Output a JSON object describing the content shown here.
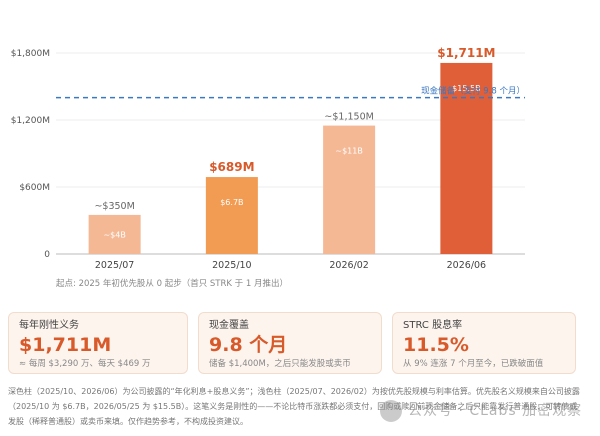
{
  "chart_data": {
    "type": "bar",
    "categories": [
      "2025/07",
      "2025/10",
      "2026/02",
      "2026/06"
    ],
    "values": [
      350,
      689,
      1150,
      1711
    ],
    "value_labels": [
      "~$350M",
      "$689M",
      "~$1,150M",
      "$1,711M"
    ],
    "inner_labels": [
      "~$4B",
      "$6.7B",
      "~$11B",
      "$15.5B"
    ],
    "bar_colors": [
      "#f4b895",
      "#f29b53",
      "#f4b895",
      "#e05e38"
    ],
    "bold_labels": [
      false,
      true,
      false,
      true
    ],
    "ylim": [
      0,
      1900
    ],
    "yticks": [
      0,
      600,
      1200,
      1800
    ],
    "ytick_labels": [
      "0",
      "$600M",
      "$1,200M",
      "$1,800M"
    ],
    "reference_line": {
      "value": 1400,
      "label": "现金储备（支付 9.8 个月）",
      "color": "#3a78c2"
    },
    "xnote": "起点: 2025 年初优先股从 0 起步（首只 STRK 于 1 月推出）",
    "grid": true
  },
  "cards": [
    {
      "title": "每年刚性义务",
      "value": "$1,711M",
      "sub": "≈ 每周 $3,290 万、每天 $469 万"
    },
    {
      "title": "现金覆盖",
      "value": "9.8 个月",
      "sub": "储备 $1,400M，之后只能发股或卖币"
    },
    {
      "title": "STRC 股息率",
      "value": "11.5%",
      "sub": "从 9% 连涨 7 个月至今，已跌破面值"
    }
  ],
  "footnote": [
    "深色柱（2025/10、2026/06）为公司披露的“年化利息+股息义务”；浅色柱（2025/07、2026/02）为按优先股规模与利率估算。优先股名义规模来自公司披露",
    "（2025/10 为 $6.7B，2026/05/25 为 $15.5B）。这笔义务是刚性的——不论比特币涨跌都必须支付，回购或赎回前现金储备之后只能靠发行普通股、可转债或",
    "发股（稀释普通股）或卖币来填。仅作趋势参考，不构成投资建议。"
  ],
  "watermark": "公众号 · CLabs 加密观察"
}
